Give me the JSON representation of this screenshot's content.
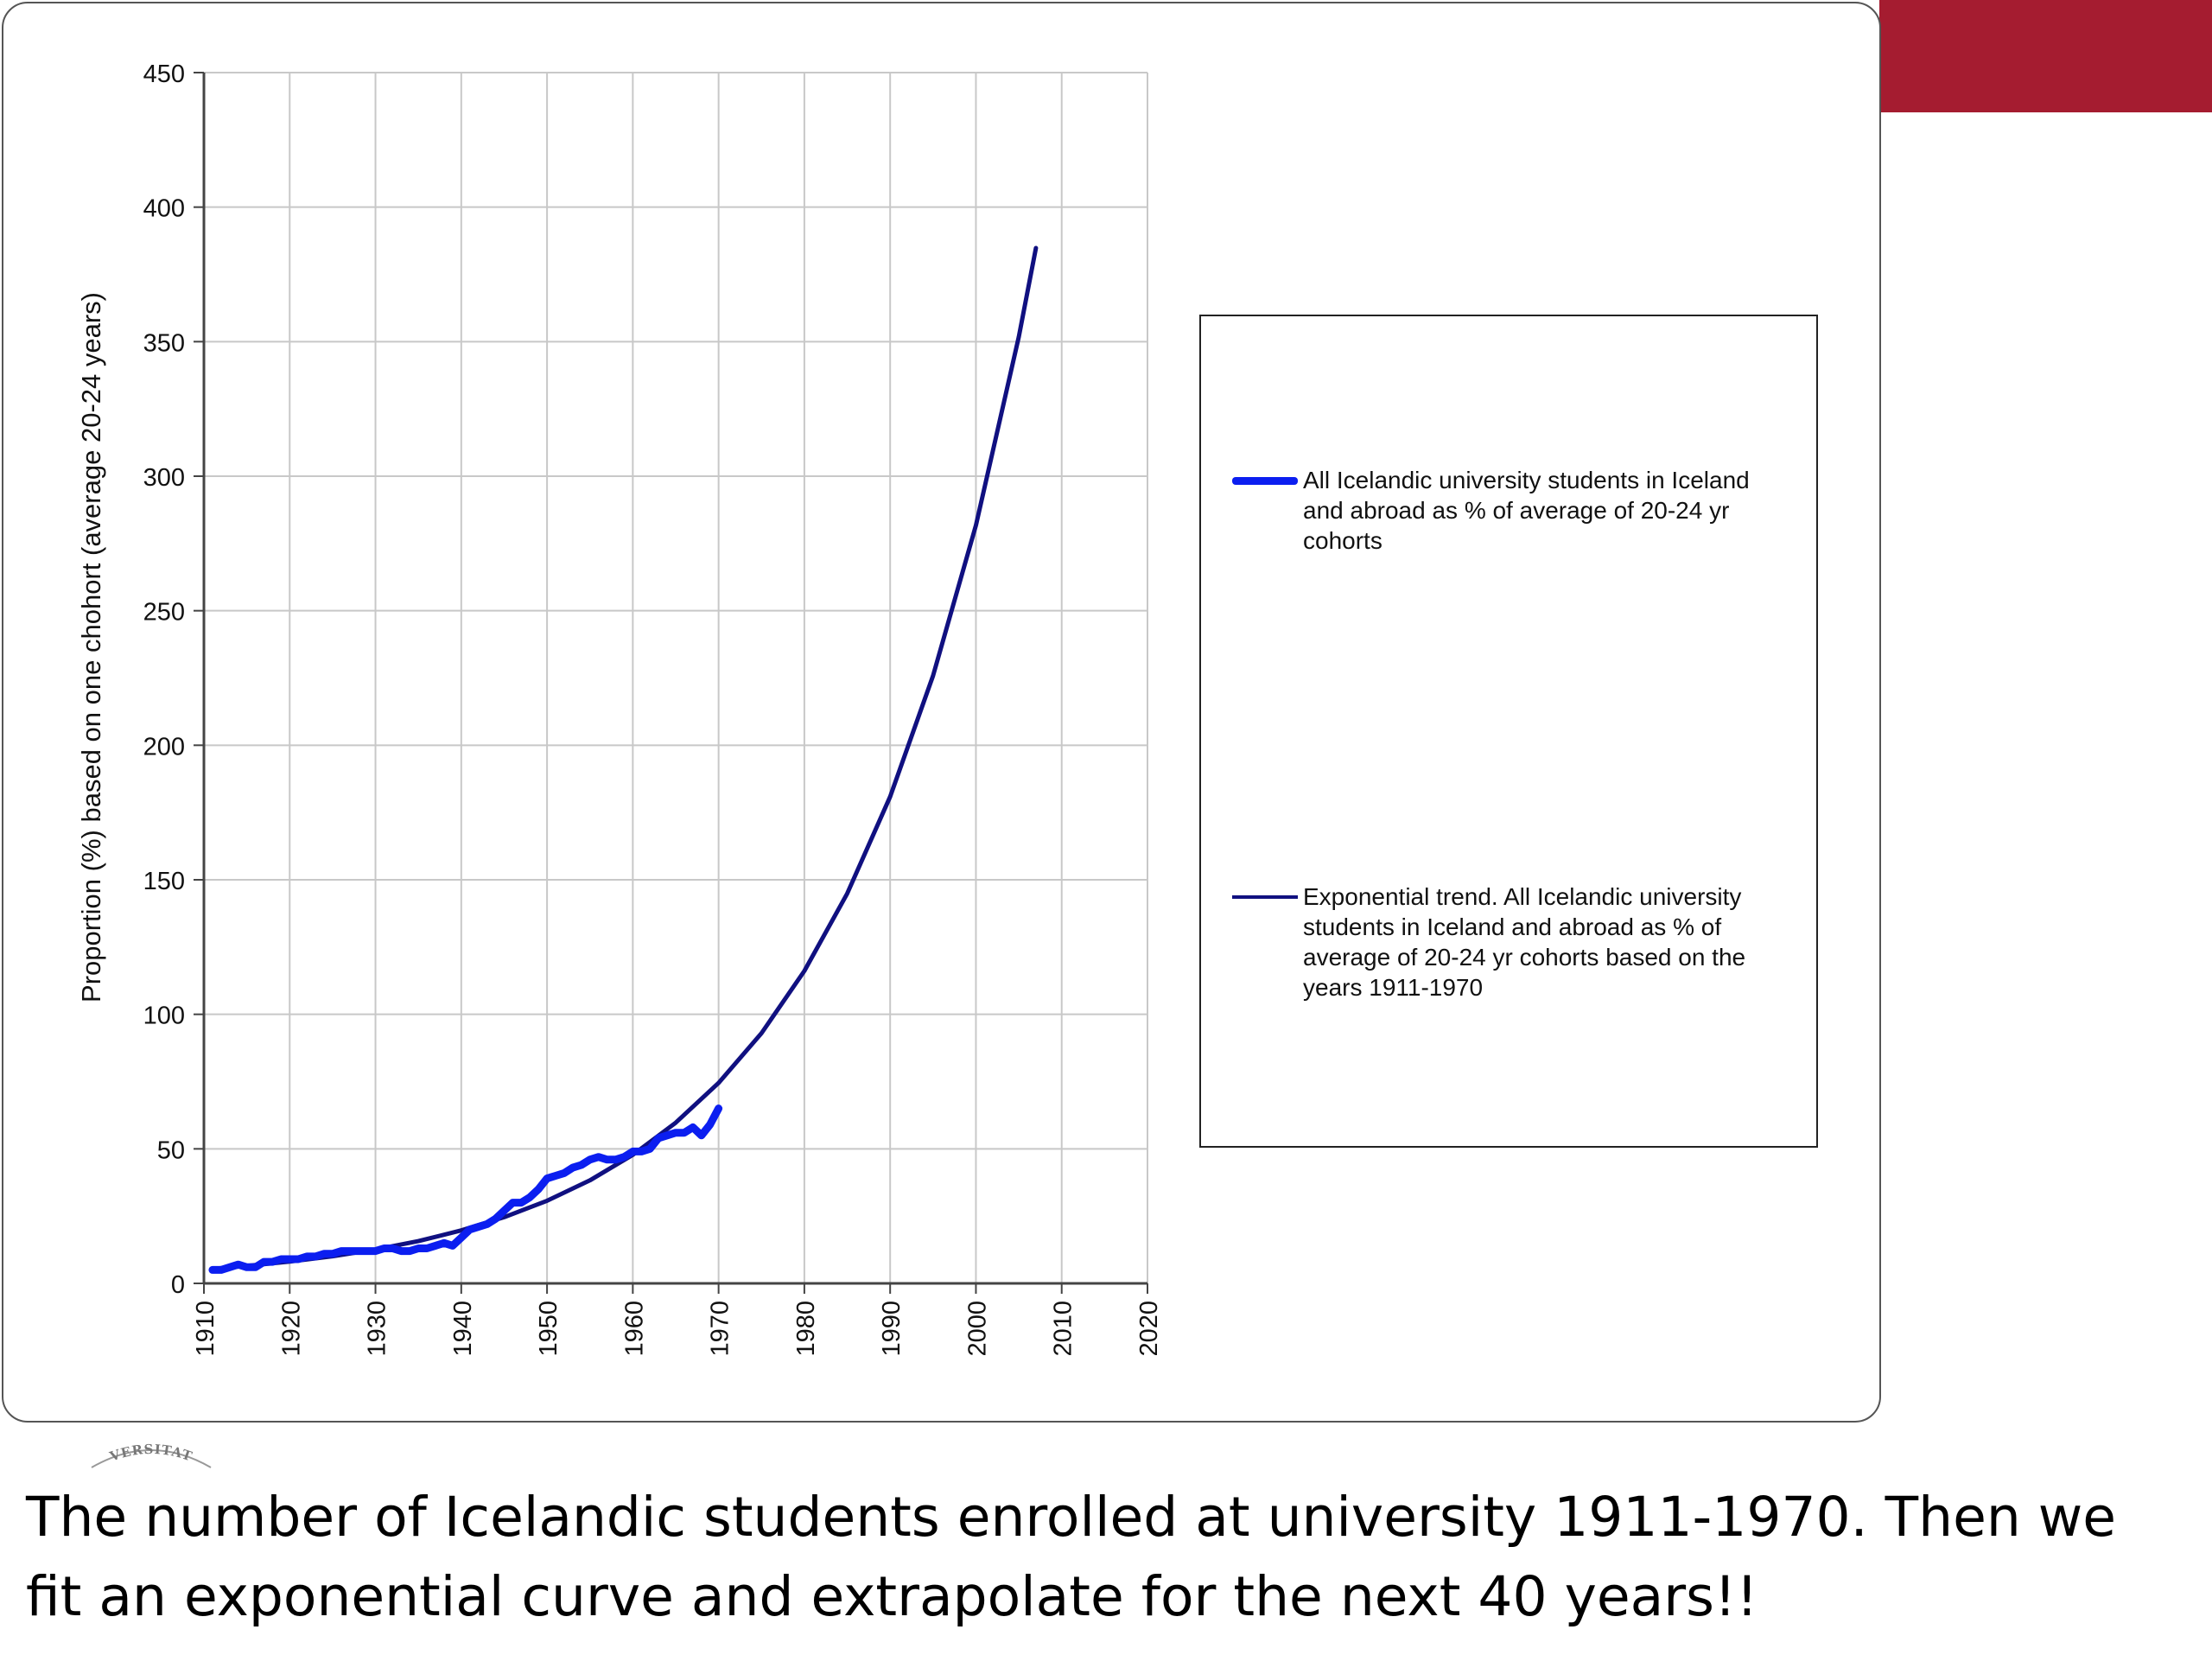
{
  "caption": "The number of Icelandic students enrolled at university 1911-1970. Then we fit an exponential curve and extrapolate for the next 40 years!!",
  "logo_text": "VERSITAT",
  "colors": {
    "accent": "#a51c30",
    "data_series": "#0b1ef0",
    "trend_series": "#101080",
    "grid": "#c8c8c8"
  },
  "chart_data": {
    "type": "line",
    "title": "",
    "xlabel": "",
    "ylabel": "Proportion (%) based on one chohort (average 20-24 years)",
    "xlim": [
      1910,
      2020
    ],
    "ylim": [
      0,
      450
    ],
    "x_ticks": [
      "1910",
      "1920",
      "1930",
      "1940",
      "1950",
      "1960",
      "1970",
      "1980",
      "1990",
      "2000",
      "2010",
      "2020"
    ],
    "y_ticks": [
      "0",
      "50",
      "100",
      "150",
      "200",
      "250",
      "300",
      "350",
      "400",
      "450"
    ],
    "grid": true,
    "legend_position": "right",
    "series": [
      {
        "name": "All Icelandic university students in Iceland and abroad as % of average of 20-24 yr cohorts",
        "x": [
          1911,
          1912,
          1913,
          1914,
          1915,
          1916,
          1917,
          1918,
          1919,
          1920,
          1921,
          1922,
          1923,
          1924,
          1925,
          1926,
          1927,
          1928,
          1929,
          1930,
          1931,
          1932,
          1933,
          1934,
          1935,
          1936,
          1937,
          1938,
          1939,
          1940,
          1941,
          1942,
          1943,
          1944,
          1945,
          1946,
          1947,
          1948,
          1949,
          1950,
          1951,
          1952,
          1953,
          1954,
          1955,
          1956,
          1957,
          1958,
          1959,
          1960,
          1961,
          1962,
          1963,
          1964,
          1965,
          1966,
          1967,
          1968,
          1969,
          1970
        ],
        "y": [
          5,
          5,
          6,
          7,
          6,
          6,
          8,
          8,
          9,
          9,
          9,
          10,
          10,
          11,
          11,
          12,
          12,
          12,
          12,
          12,
          13,
          13,
          12,
          12,
          13,
          13,
          14,
          15,
          14,
          17,
          20,
          21,
          22,
          24,
          27,
          30,
          30,
          32,
          35,
          39,
          40,
          41,
          43,
          44,
          46,
          47,
          46,
          46,
          47,
          49,
          49,
          50,
          54,
          55,
          56,
          56,
          58,
          55,
          59,
          65
        ]
      },
      {
        "name": "Exponential trend. All Icelandic university students in Iceland and abroad as % of average of 20-24 yr cohorts based on the years 1911-1970",
        "trend": "exponential",
        "fit_years": [
          1911,
          1970
        ],
        "x": [
          1911,
          1915,
          1920,
          1925,
          1930,
          1935,
          1940,
          1945,
          1950,
          1955,
          1960,
          1965,
          1970,
          1975,
          1980,
          1985,
          1990,
          1995,
          2000,
          2005,
          2007
        ],
        "y": [
          5.4,
          6.5,
          8.1,
          10.1,
          12.6,
          15.7,
          19.7,
          24.6,
          30.7,
          38.3,
          47.8,
          59.7,
          74.5,
          93.0,
          116.1,
          144.9,
          180.9,
          225.8,
          281.8,
          351.8,
          384.8
        ]
      }
    ]
  }
}
